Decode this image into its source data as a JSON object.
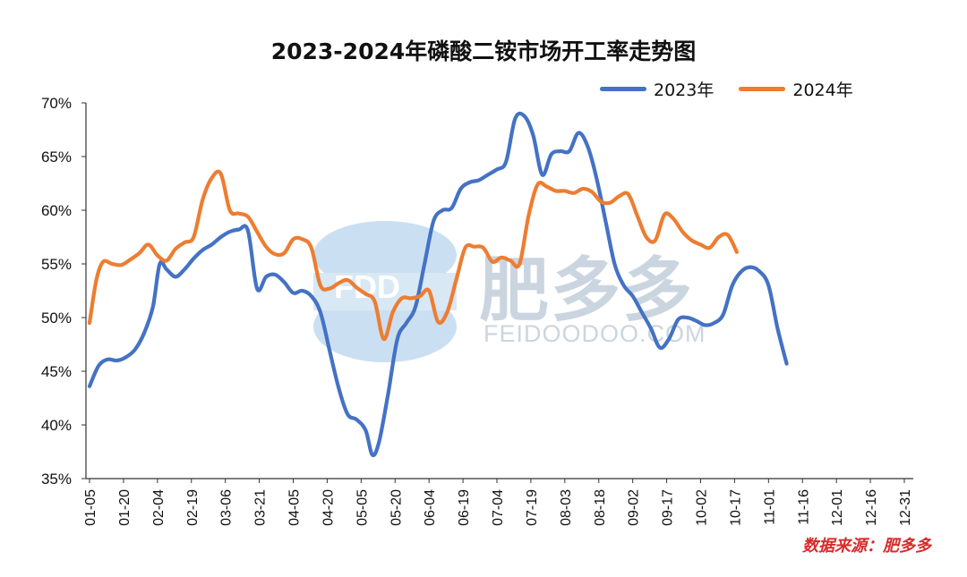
{
  "chart_data": {
    "type": "line",
    "title": "2023-2024年磷酸二铵市场开工率走势图",
    "source": "数据来源：肥多多",
    "watermark": {
      "brand": "肥多多",
      "site": "FEIDOODOO.COM",
      "logo": "FDD"
    },
    "ylim": [
      35,
      70
    ],
    "y_ticks": [
      "35%",
      "40%",
      "45%",
      "50%",
      "55%",
      "60%",
      "65%",
      "70%"
    ],
    "grid": false,
    "legend_position": "top-right",
    "categories": [
      "01-05",
      "01-20",
      "02-04",
      "02-19",
      "03-06",
      "03-21",
      "04-05",
      "04-20",
      "05-05",
      "05-20",
      "06-04",
      "06-19",
      "07-04",
      "07-19",
      "08-03",
      "08-18",
      "09-02",
      "09-17",
      "10-02",
      "10-17",
      "11-01",
      "11-16",
      "12-01",
      "12-16",
      "12-31"
    ],
    "x_range_days": [
      5,
      365
    ],
    "series": [
      {
        "name": "2023年",
        "color": "#4472C4",
        "points": [
          [
            5,
            43.6
          ],
          [
            9,
            45.5
          ],
          [
            13,
            46.1
          ],
          [
            17,
            46.0
          ],
          [
            21,
            46.3
          ],
          [
            25,
            47.0
          ],
          [
            29,
            48.5
          ],
          [
            33,
            51.0
          ],
          [
            36,
            55.0
          ],
          [
            39,
            54.5
          ],
          [
            43,
            53.8
          ],
          [
            47,
            54.5
          ],
          [
            51,
            55.5
          ],
          [
            55,
            56.3
          ],
          [
            59,
            56.8
          ],
          [
            63,
            57.5
          ],
          [
            67,
            58.0
          ],
          [
            71,
            58.2
          ],
          [
            75,
            58.1
          ],
          [
            79,
            52.7
          ],
          [
            83,
            53.8
          ],
          [
            87,
            54.0
          ],
          [
            91,
            53.3
          ],
          [
            95,
            52.3
          ],
          [
            99,
            52.5
          ],
          [
            103,
            52.0
          ],
          [
            107,
            50.5
          ],
          [
            111,
            47.0
          ],
          [
            115,
            43.5
          ],
          [
            119,
            41.0
          ],
          [
            123,
            40.5
          ],
          [
            127,
            39.5
          ],
          [
            130,
            37.2
          ],
          [
            133,
            38.5
          ],
          [
            137,
            43.0
          ],
          [
            141,
            48.0
          ],
          [
            145,
            49.5
          ],
          [
            149,
            51.0
          ],
          [
            153,
            55.0
          ],
          [
            157,
            59.0
          ],
          [
            161,
            60.0
          ],
          [
            165,
            60.2
          ],
          [
            169,
            62.0
          ],
          [
            173,
            62.6
          ],
          [
            177,
            62.8
          ],
          [
            181,
            63.3
          ],
          [
            185,
            63.8
          ],
          [
            189,
            64.5
          ],
          [
            193,
            68.5
          ],
          [
            197,
            68.8
          ],
          [
            201,
            67.0
          ],
          [
            205,
            63.3
          ],
          [
            209,
            65.2
          ],
          [
            213,
            65.5
          ],
          [
            217,
            65.5
          ],
          [
            221,
            67.2
          ],
          [
            225,
            66.0
          ],
          [
            229,
            63.0
          ],
          [
            233,
            59.0
          ],
          [
            237,
            55.0
          ],
          [
            241,
            53.0
          ],
          [
            245,
            52.0
          ],
          [
            249,
            50.5
          ],
          [
            253,
            49.0
          ],
          [
            257,
            47.2
          ],
          [
            261,
            48.0
          ],
          [
            265,
            49.8
          ],
          [
            269,
            50.0
          ],
          [
            273,
            49.7
          ],
          [
            277,
            49.3
          ],
          [
            281,
            49.5
          ],
          [
            285,
            50.3
          ],
          [
            289,
            53.0
          ],
          [
            293,
            54.3
          ],
          [
            297,
            54.7
          ],
          [
            301,
            54.3
          ],
          [
            305,
            53.0
          ],
          [
            309,
            49.0
          ],
          [
            313,
            45.7
          ]
        ]
      },
      {
        "name": "2024年",
        "color": "#ED7D31",
        "points": [
          [
            5,
            49.5
          ],
          [
            8,
            53.5
          ],
          [
            11,
            55.2
          ],
          [
            15,
            55.0
          ],
          [
            19,
            54.9
          ],
          [
            23,
            55.4
          ],
          [
            27,
            56.0
          ],
          [
            31,
            56.8
          ],
          [
            35,
            55.8
          ],
          [
            39,
            55.3
          ],
          [
            43,
            56.4
          ],
          [
            47,
            57.0
          ],
          [
            51,
            57.5
          ],
          [
            55,
            61.0
          ],
          [
            59,
            63.0
          ],
          [
            63,
            63.4
          ],
          [
            67,
            60.0
          ],
          [
            71,
            59.7
          ],
          [
            75,
            59.4
          ],
          [
            79,
            58.0
          ],
          [
            83,
            56.6
          ],
          [
            87,
            55.9
          ],
          [
            91,
            56.0
          ],
          [
            95,
            57.3
          ],
          [
            99,
            57.3
          ],
          [
            103,
            56.5
          ],
          [
            107,
            53.0
          ],
          [
            111,
            52.7
          ],
          [
            115,
            53.2
          ],
          [
            119,
            53.5
          ],
          [
            123,
            52.8
          ],
          [
            127,
            52.2
          ],
          [
            131,
            51.5
          ],
          [
            135,
            48.0
          ],
          [
            139,
            50.5
          ],
          [
            143,
            51.8
          ],
          [
            147,
            51.8
          ],
          [
            151,
            52.0
          ],
          [
            155,
            52.5
          ],
          [
            159,
            49.6
          ],
          [
            163,
            50.5
          ],
          [
            167,
            53.5
          ],
          [
            171,
            56.5
          ],
          [
            175,
            56.6
          ],
          [
            179,
            56.5
          ],
          [
            183,
            55.2
          ],
          [
            187,
            55.6
          ],
          [
            191,
            55.3
          ],
          [
            195,
            55.0
          ],
          [
            199,
            59.5
          ],
          [
            203,
            62.4
          ],
          [
            207,
            62.2
          ],
          [
            211,
            61.8
          ],
          [
            215,
            61.8
          ],
          [
            219,
            61.6
          ],
          [
            223,
            62.0
          ],
          [
            227,
            61.7
          ],
          [
            231,
            60.8
          ],
          [
            235,
            60.7
          ],
          [
            239,
            61.3
          ],
          [
            243,
            61.5
          ],
          [
            247,
            59.5
          ],
          [
            251,
            57.5
          ],
          [
            255,
            57.2
          ],
          [
            259,
            59.6
          ],
          [
            263,
            59.2
          ],
          [
            267,
            58.0
          ],
          [
            271,
            57.2
          ],
          [
            275,
            56.8
          ],
          [
            279,
            56.5
          ],
          [
            283,
            57.5
          ],
          [
            287,
            57.7
          ],
          [
            291,
            56.1
          ]
        ]
      }
    ]
  }
}
